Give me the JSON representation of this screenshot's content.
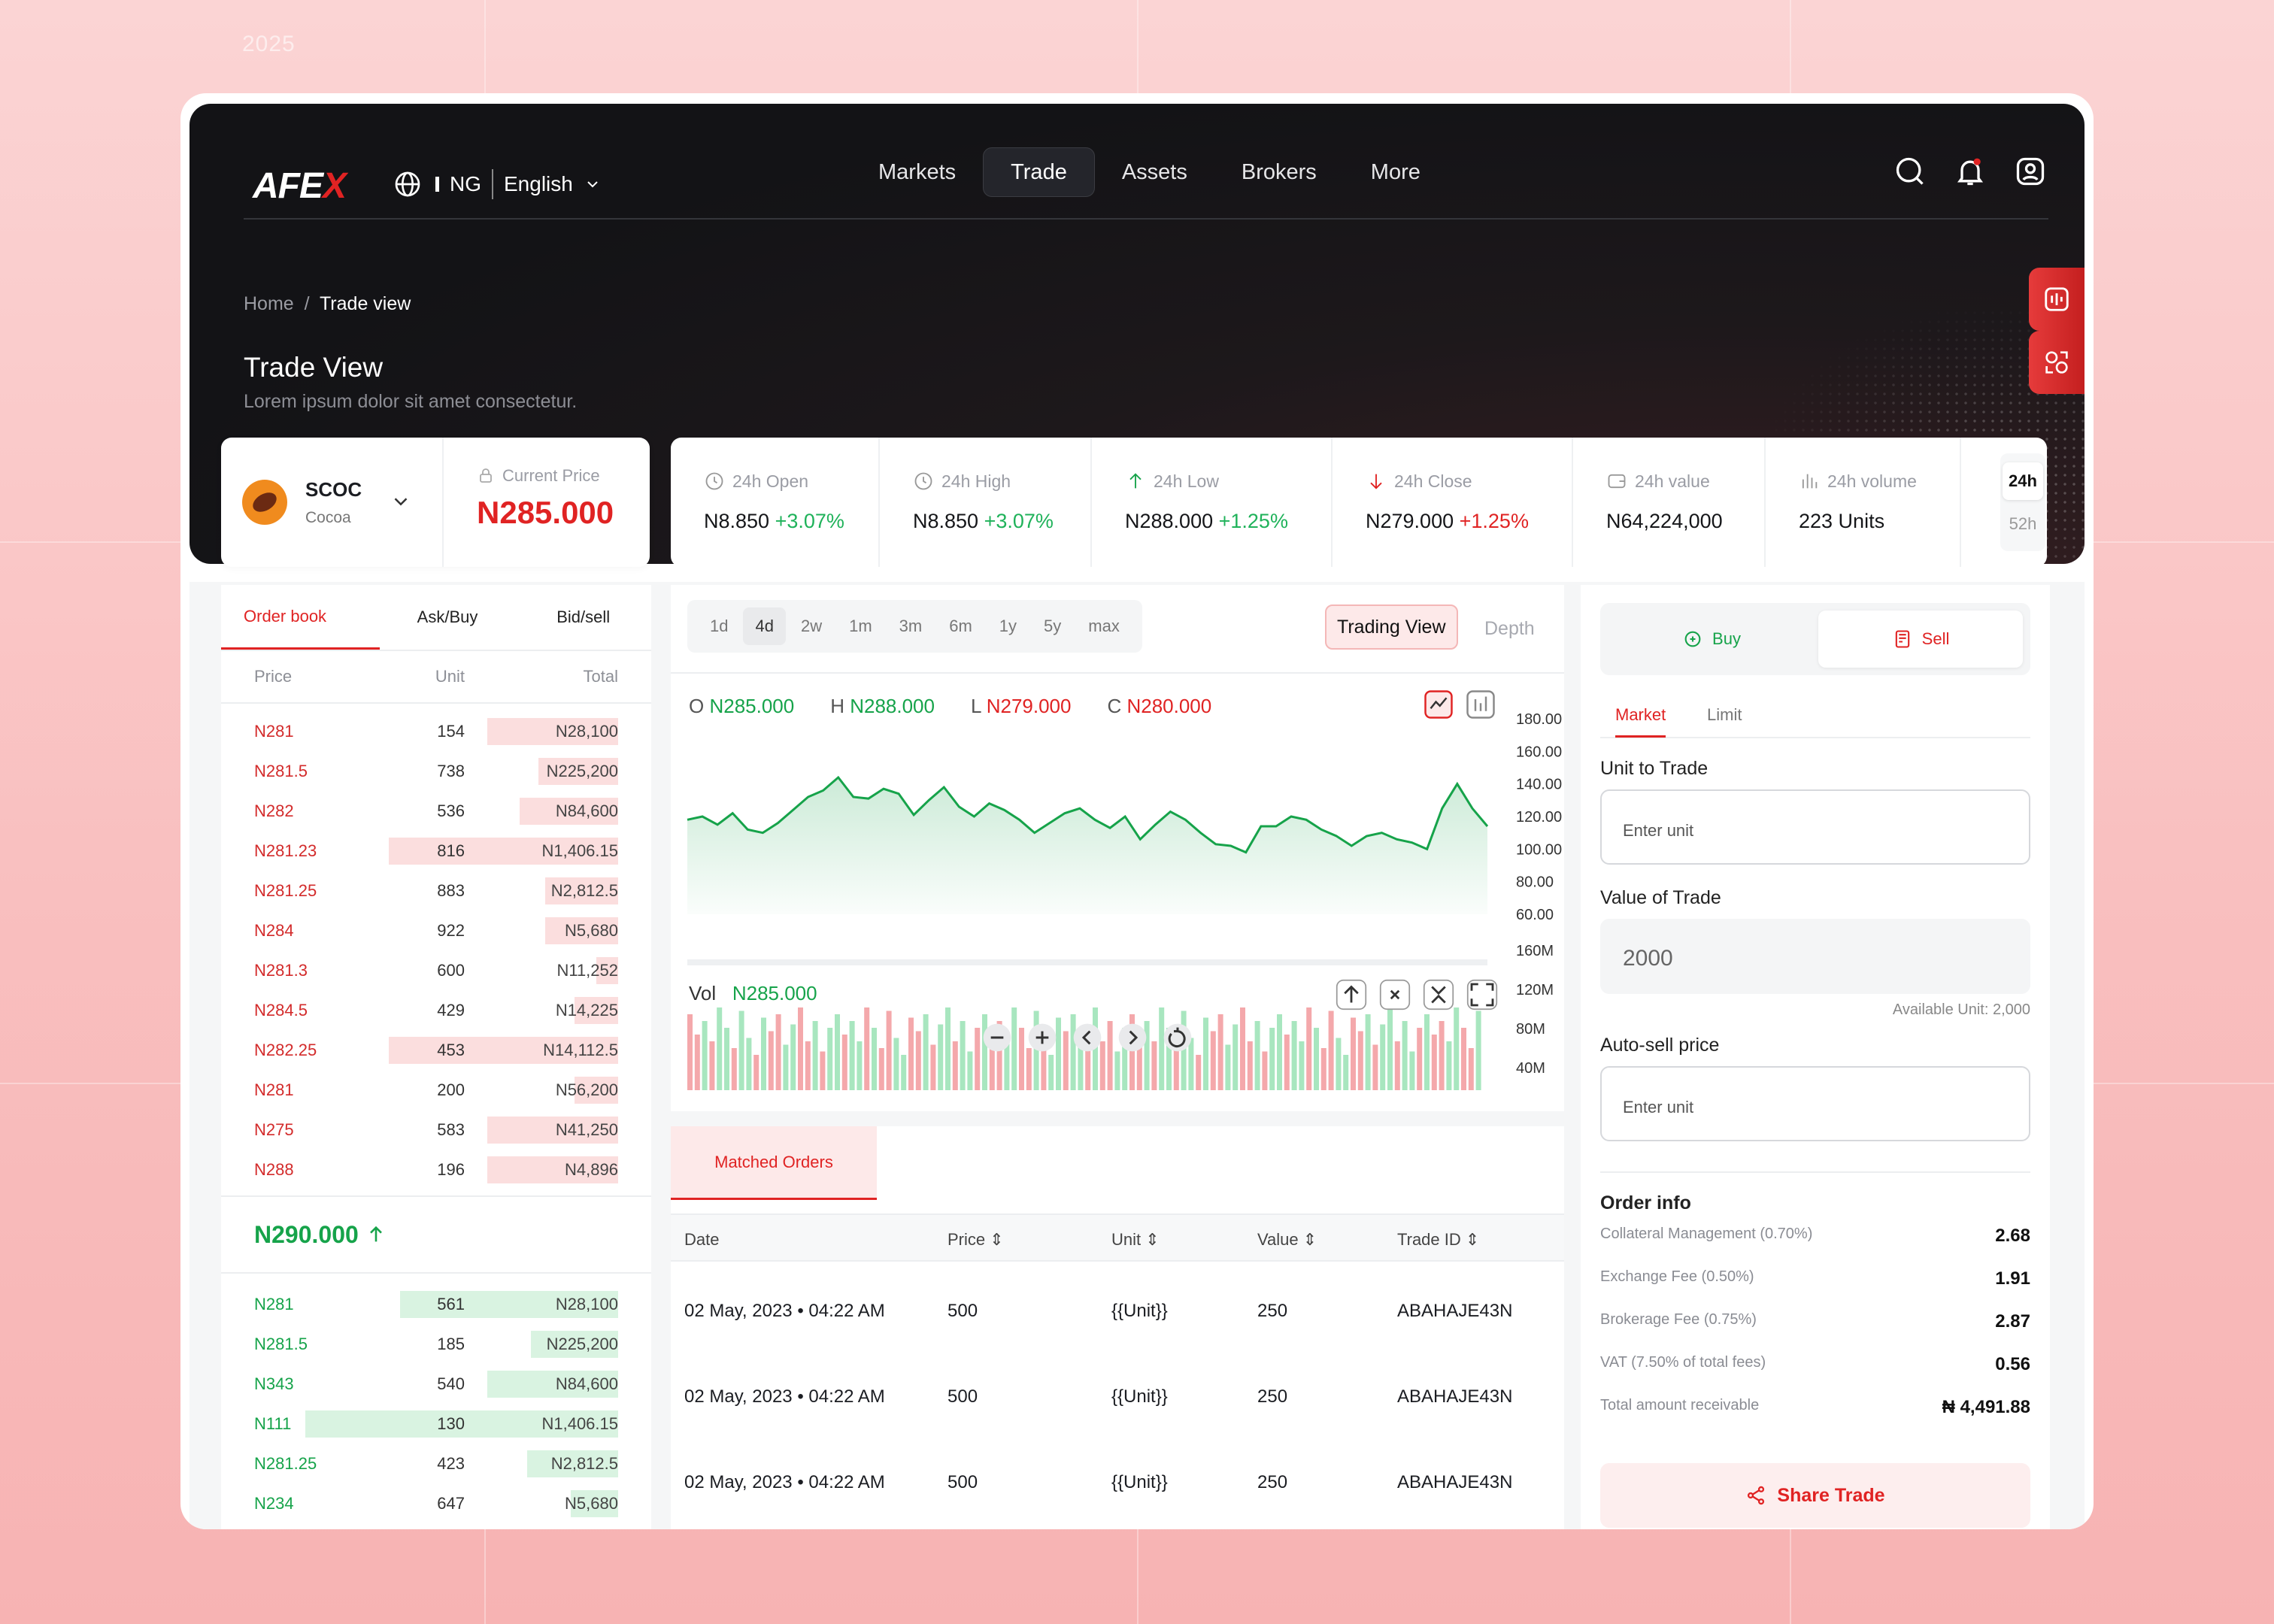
{
  "page": {
    "year": "2025"
  },
  "header": {
    "logo": "AFEX",
    "country": "NG",
    "language": "English",
    "nav": [
      "Markets",
      "Trade",
      "Assets",
      "Brokers",
      "More"
    ],
    "active_nav": "Trade"
  },
  "breadcrumb": {
    "home": "Home",
    "current": "Trade view"
  },
  "hero": {
    "title": "Trade View",
    "subtitle": "Lorem ipsum dolor sit amet consectetur."
  },
  "commodity": {
    "symbol": "SCOC",
    "name": "Cocoa",
    "price_label": "Current Price",
    "price": "N285.000"
  },
  "stats": [
    {
      "label": "24h Open",
      "value": "N8.850",
      "change": "+3.07%",
      "color": "g",
      "icon": "clock-icon"
    },
    {
      "label": "24h High",
      "value": "N8.850",
      "change": "+3.07%",
      "color": "g",
      "icon": "clock-icon"
    },
    {
      "label": "24h Low",
      "value": "N288.000",
      "change": "+1.25%",
      "color": "g",
      "icon": "arrow-up-icon"
    },
    {
      "label": "24h Close",
      "value": "N279.000",
      "change": "+1.25%",
      "color": "r",
      "icon": "arrow-down-icon"
    },
    {
      "label": "24h value",
      "value": "N64,224,000",
      "change": "",
      "color": "",
      "icon": "wallet-icon"
    },
    {
      "label": "24h volume",
      "value": "223 Units",
      "change": "",
      "color": "",
      "icon": "bar-chart-icon"
    }
  ],
  "period_toggle": [
    "24h",
    "52h"
  ],
  "orderbook": {
    "tabs": [
      "Order book",
      "Ask/Buy",
      "Bid/sell"
    ],
    "headers": [
      "Price",
      "Unit",
      "Total"
    ],
    "asks": [
      [
        "N281",
        "154",
        "N28,100",
        0.36
      ],
      [
        "N281.5",
        "738",
        "N225,200",
        0.22
      ],
      [
        "N282",
        "536",
        "N84,600",
        0.27
      ],
      [
        "N281.23",
        "816",
        "N1,406.15",
        0.63
      ],
      [
        "N281.25",
        "883",
        "N2,812.5",
        0.2
      ],
      [
        "N284",
        "922",
        "N5,680",
        0.2
      ],
      [
        "N281.3",
        "600",
        "N11,252",
        0.06
      ],
      [
        "N284.5",
        "429",
        "N14,225",
        0.12
      ],
      [
        "N282.25",
        "453",
        "N14,112.5",
        0.63
      ],
      [
        "N281",
        "200",
        "N56,200",
        0.12
      ],
      [
        "N275",
        "583",
        "N41,250",
        0.36
      ],
      [
        "N288",
        "196",
        "N4,896",
        0.36
      ]
    ],
    "mid_price": "N290.000",
    "bids": [
      [
        "N281",
        "561",
        "N28,100",
        0.6
      ],
      [
        "N281.5",
        "185",
        "N225,200",
        0.24
      ],
      [
        "N343",
        "540",
        "N84,600",
        0.36
      ],
      [
        "N111",
        "130",
        "N1,406.15",
        0.86
      ],
      [
        "N281.25",
        "423",
        "N2,812.5",
        0.25
      ],
      [
        "N234",
        "647",
        "N5,680",
        0.13
      ]
    ]
  },
  "chart": {
    "timeframes": [
      "1d",
      "4d",
      "2w",
      "1m",
      "3m",
      "6m",
      "1y",
      "5y",
      "max"
    ],
    "active_tf": "4d",
    "view_btn": "Trading View",
    "depth_btn": "Depth",
    "ohlc": {
      "o": "N285.000",
      "h": "N288.000",
      "l": "N279.000",
      "c": "N280.000"
    },
    "vol_label": "Vol",
    "vol_value": "N285.000"
  },
  "chart_data": {
    "type": "line",
    "ylim": [
      60,
      180
    ],
    "y_ticks": [
      "180.00",
      "160.00",
      "140.00",
      "120.00",
      "100.00",
      "80.00",
      "60.00"
    ],
    "values": [
      118,
      120,
      115,
      122,
      112,
      110,
      116,
      124,
      132,
      136,
      144,
      132,
      131,
      137,
      134,
      121,
      130,
      138,
      126,
      120,
      128,
      124,
      118,
      110,
      116,
      122,
      125,
      118,
      113,
      120,
      106,
      115,
      123,
      118,
      110,
      103,
      102,
      98,
      114,
      114,
      120,
      118,
      112,
      108,
      102,
      108,
      110,
      106,
      104,
      100,
      125,
      140,
      125,
      114
    ],
    "vol_ticks": [
      "160M",
      "120M",
      "80M",
      "40M"
    ]
  },
  "matched": {
    "tab": "Matched Orders",
    "headers": [
      "Date",
      "Price",
      "Unit",
      "Value",
      "Trade ID"
    ],
    "rows": [
      [
        "02 May, 2023  •  04:22 AM",
        "500",
        "{{Unit}}",
        "250",
        "ABAHAJE43N"
      ],
      [
        "02 May, 2023  •  04:22 AM",
        "500",
        "{{Unit}}",
        "250",
        "ABAHAJE43N"
      ],
      [
        "02 May, 2023  •  04:22 AM",
        "500",
        "{{Unit}}",
        "250",
        "ABAHAJE43N"
      ]
    ]
  },
  "trade": {
    "buy": "Buy",
    "sell": "Sell",
    "market": "Market",
    "limit": "Limit",
    "unit_label": "Unit to Trade",
    "unit_placeholder": "Enter unit",
    "value_label": "Value of Trade",
    "value": "2000",
    "available": "Available Unit: 2,000",
    "auto_label": "Auto-sell price",
    "auto_placeholder": "Enter unit",
    "order_info": "Order info",
    "fees": [
      [
        "Collateral Management (0.70%)",
        "2.68"
      ],
      [
        "Exchange Fee (0.50%)",
        "1.91"
      ],
      [
        "Brokerage Fee (0.75%)",
        "2.87"
      ],
      [
        "VAT (7.50% of total fees)",
        "0.56"
      ],
      [
        "Total amount receivable",
        "₦ 4,491.88"
      ]
    ],
    "share": "Share Trade"
  }
}
